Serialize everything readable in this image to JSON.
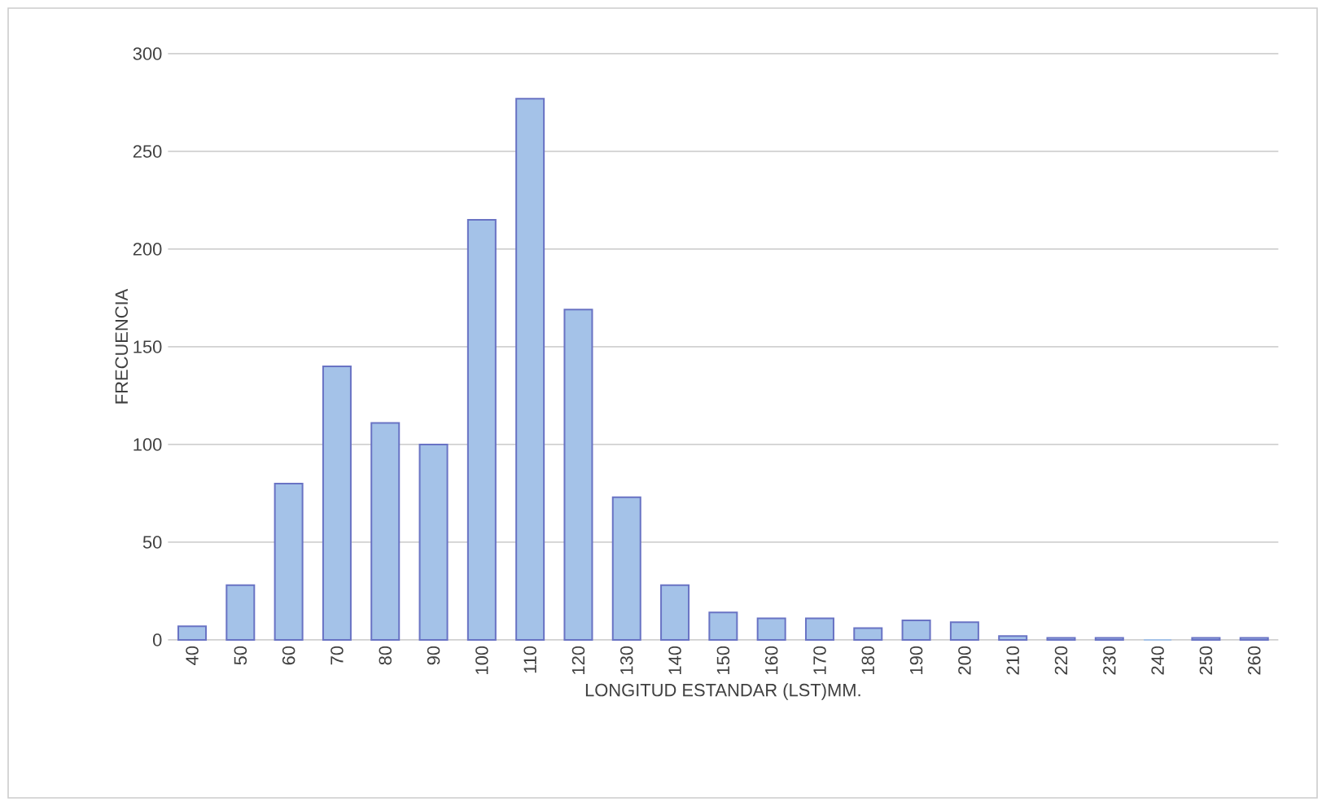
{
  "chart_data": {
    "type": "bar",
    "xlabel": "LONGITUD ESTANDAR (LST)MM.",
    "ylabel": "FRECUENCIA",
    "categories": [
      "40",
      "50",
      "60",
      "70",
      "80",
      "90",
      "100",
      "110",
      "120",
      "130",
      "140",
      "150",
      "160",
      "170",
      "180",
      "190",
      "200",
      "210",
      "220",
      "230",
      "240",
      "250",
      "260"
    ],
    "values": [
      7,
      28,
      80,
      140,
      111,
      100,
      215,
      277,
      169,
      73,
      28,
      14,
      11,
      11,
      6,
      10,
      9,
      2,
      1,
      1,
      0,
      1,
      1
    ],
    "color": "#a4c2e8",
    "ylim": [
      0,
      300
    ],
    "yticks": [
      0,
      50,
      100,
      150,
      200,
      250,
      300
    ],
    "grid": "y"
  }
}
